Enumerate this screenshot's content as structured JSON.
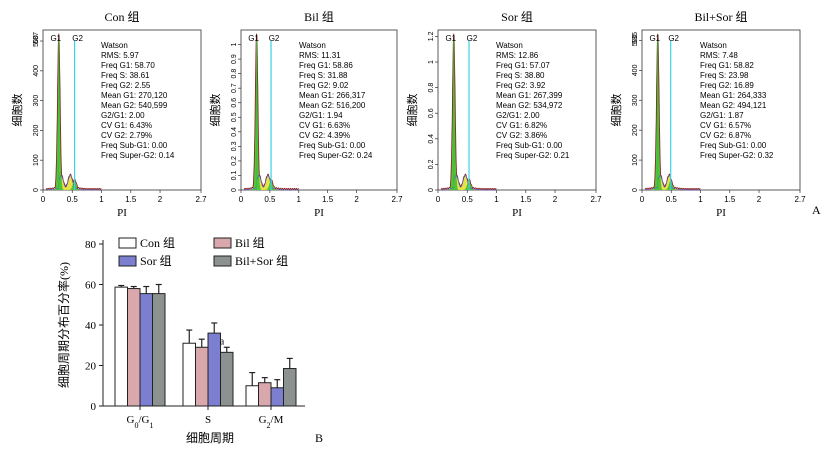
{
  "panel_labels": {
    "a": "A",
    "b": "B"
  },
  "chart_data": [
    {
      "type": "histogram",
      "title": "Con 组",
      "xlabel": "PI",
      "ylabel": "细胞数",
      "xticks": [
        "0",
        "0.5",
        "1",
        "1.5",
        "2",
        "2.7"
      ],
      "xlim": [
        0,
        2.7
      ],
      "yticks": [
        "0",
        "100",
        "200",
        "300",
        "400",
        "500"
      ],
      "ymax_label": "537",
      "ylim": [
        0,
        537
      ],
      "peak_labels": [
        "G1",
        "G2"
      ],
      "g1_pos": 0.27,
      "g2_pos": 0.54,
      "stats": [
        "Watson",
        "RMS: 5.97",
        "Freq G1: 58.70",
        "Freq S: 38.61",
        "Freq G2: 2.55",
        "Mean G1: 270,120",
        "Mean G2: 540,599",
        "G2/G1: 2.00",
        "CV G1: 6.43%",
        "CV G2: 2.79%",
        "Freq Sub-G1: 0.00",
        "Freq Super-G2: 0.14"
      ]
    },
    {
      "type": "histogram",
      "title": "Bil 组",
      "xlabel": "PI",
      "ylabel": "细胞数",
      "xticks": [
        "0",
        "0.5",
        "1",
        "1.5",
        "2",
        "2.7"
      ],
      "xlim": [
        0,
        2.7
      ],
      "yticks": [
        "0",
        "0.1",
        "0.2",
        "0.3",
        "0.4",
        "0.5",
        "0.6",
        "0.7",
        "0.8",
        "0.9",
        "1"
      ],
      "ylim": [
        0,
        1.1
      ],
      "peak_labels": [
        "G1",
        "G2"
      ],
      "g1_pos": 0.27,
      "g2_pos": 0.52,
      "stats": [
        "Watson",
        "RMS: 11.31",
        "Freq G1: 58.86",
        "Freq S: 31.88",
        "Freq G2: 9.02",
        "Mean G1: 266,317",
        "Mean G2: 516,200",
        "G2/G1: 1.94",
        "CV G1: 6.63%",
        "CV G2: 4.39%",
        "Freq Sub-G1: 0.00",
        "Freq Super-G2: 0.24"
      ]
    },
    {
      "type": "histogram",
      "title": "Sor 组",
      "xlabel": "PI",
      "ylabel": "细胞数",
      "xticks": [
        "0",
        "0.5",
        "1",
        "1.5",
        "2",
        "2.7"
      ],
      "xlim": [
        0,
        2.7
      ],
      "yticks": [
        "0",
        "0.2",
        "0.4",
        "0.6",
        "0.8",
        "1",
        "1.2"
      ],
      "ylim": [
        0,
        1.25
      ],
      "peak_labels": [
        "G1",
        "G2"
      ],
      "g1_pos": 0.27,
      "g2_pos": 0.53,
      "stats": [
        "Watson",
        "RMS: 12.86",
        "Freq G1: 57.07",
        "Freq S: 38.80",
        "Freq G2: 3.92",
        "Mean G1: 267,399",
        "Mean G2: 534,972",
        "G2/G1: 2.00",
        "CV G1: 6.82%",
        "CV G2: 3.86%",
        "Freq Sub-G1: 0.00",
        "Freq Super-G2: 0.21"
      ]
    },
    {
      "type": "histogram",
      "title": "Bil+Sor 组",
      "xlabel": "PI",
      "ylabel": "细胞数",
      "xticks": [
        "0",
        "0.5",
        "1",
        "1.5",
        "2",
        "2.7"
      ],
      "xlim": [
        0,
        2.7
      ],
      "yticks": [
        "0",
        "100",
        "200",
        "300",
        "400",
        "500"
      ],
      "ymax_label": "535",
      "ylim": [
        0,
        535
      ],
      "peak_labels": [
        "G1",
        "G2"
      ],
      "g1_pos": 0.27,
      "g2_pos": 0.49,
      "stats": [
        "Watson",
        "RMS: 7.48",
        "Freq G1: 58.82",
        "Freq S: 23.98",
        "Freq G2: 16.89",
        "Mean G1: 264,333",
        "Mean G2: 494,121",
        "G2/G1: 1.87",
        "CV G1: 6.57%",
        "CV G2: 6.87%",
        "Freq Sub-G1: 0.00",
        "Freq Super-G2: 0.32"
      ]
    },
    {
      "type": "bar",
      "xlabel": "细胞周期",
      "ylabel": "细胞周期分布百分率(%)",
      "ylim": [
        0,
        80
      ],
      "yticks": [
        "0",
        "20",
        "40",
        "60",
        "80"
      ],
      "categories": [
        "G0/G1",
        "S",
        "G2/M"
      ],
      "annotation": "a",
      "legend": "top",
      "series": [
        {
          "name": "Con 组",
          "color": "#ffffff",
          "values": [
            58.7,
            31.0,
            10.0
          ],
          "errors": [
            0.8,
            6.5,
            6.5
          ]
        },
        {
          "name": "Bil 组",
          "color": "#d8a8ad",
          "values": [
            58.0,
            29.0,
            11.5
          ],
          "errors": [
            1.0,
            4.0,
            2.5
          ]
        },
        {
          "name": "Sor 组",
          "color": "#7c7fd0",
          "values": [
            55.5,
            36.0,
            9.0
          ],
          "errors": [
            3.5,
            5.0,
            4.0
          ]
        },
        {
          "name": "Bil+Sor 组",
          "color": "#8c928f",
          "values": [
            55.5,
            26.5,
            18.5
          ],
          "errors": [
            4.5,
            2.5,
            5.0
          ]
        }
      ]
    }
  ]
}
